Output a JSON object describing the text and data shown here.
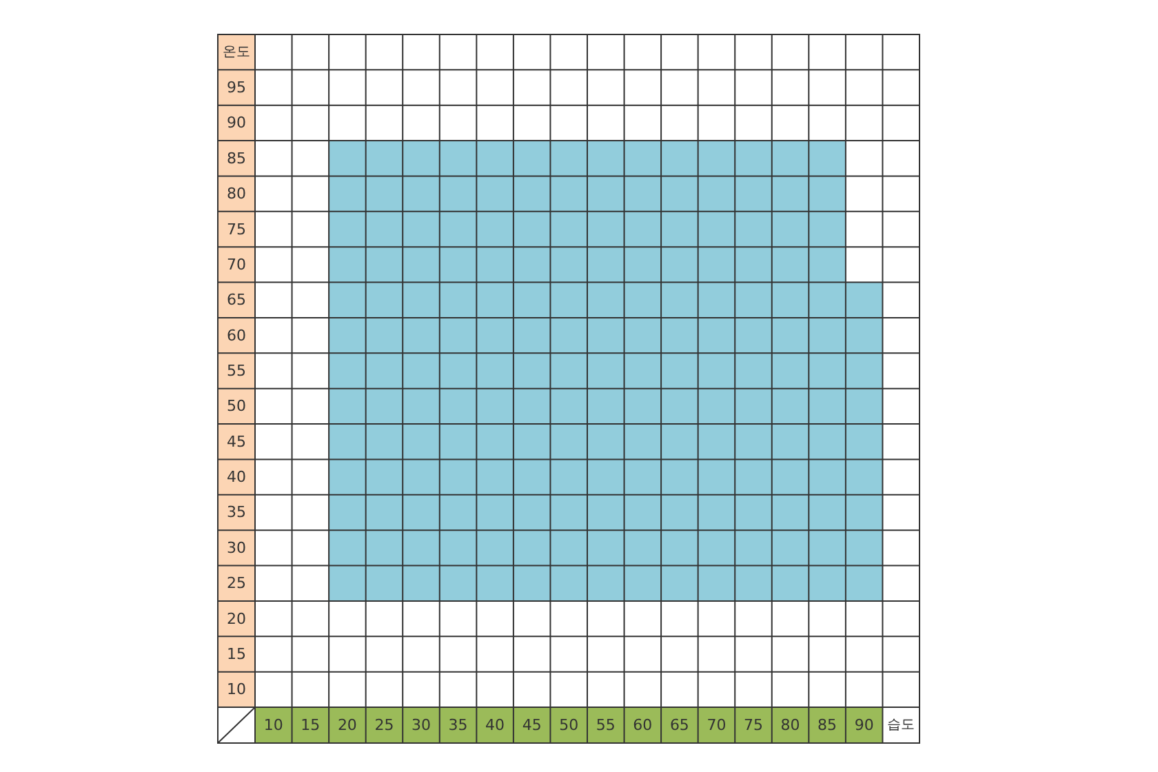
{
  "chart_data": {
    "type": "scatter",
    "xlabel": "습도",
    "ylabel": "온도",
    "color": "#92cddc",
    "marker": "square",
    "grid": true,
    "xlim": [
      7.5,
      97.5
    ],
    "ylim": [
      7.5,
      102.5
    ],
    "xticks": [
      10,
      15,
      20,
      25,
      30,
      35,
      40,
      45,
      50,
      55,
      60,
      65,
      70,
      75,
      80,
      85,
      90
    ],
    "yticks": [
      10,
      15,
      20,
      25,
      30,
      35,
      40,
      45,
      50,
      55,
      60,
      65,
      70,
      75,
      80,
      85,
      90,
      95
    ],
    "x": [
      20,
      25,
      30,
      35,
      40,
      45,
      50,
      55,
      60,
      65,
      70,
      75,
      80,
      85,
      20,
      25,
      30,
      35,
      40,
      45,
      50,
      55,
      60,
      65,
      70,
      75,
      80,
      85,
      20,
      25,
      30,
      35,
      40,
      45,
      50,
      55,
      60,
      65,
      70,
      75,
      80,
      85,
      20,
      25,
      30,
      35,
      40,
      45,
      50,
      55,
      60,
      65,
      70,
      75,
      80,
      85,
      20,
      25,
      30,
      35,
      40,
      45,
      50,
      55,
      60,
      65,
      70,
      75,
      80,
      85,
      90,
      20,
      25,
      30,
      35,
      40,
      45,
      50,
      55,
      60,
      65,
      70,
      75,
      80,
      85,
      90,
      20,
      25,
      30,
      35,
      40,
      45,
      50,
      55,
      60,
      65,
      70,
      75,
      80,
      85,
      90,
      20,
      25,
      30,
      35,
      40,
      45,
      50,
      55,
      60,
      65,
      70,
      75,
      80,
      85,
      90,
      20,
      25,
      30,
      35,
      40,
      45,
      50,
      55,
      60,
      65,
      70,
      75,
      80,
      85,
      90,
      20,
      25,
      30,
      35,
      40,
      45,
      50,
      55,
      60,
      65,
      70,
      75,
      80,
      85,
      90,
      20,
      25,
      30,
      35,
      40,
      45,
      50,
      55,
      60,
      65,
      70,
      75,
      80,
      85,
      90,
      20,
      25,
      30,
      35,
      40,
      45,
      50,
      55,
      60,
      65,
      70,
      75,
      80,
      85,
      90,
      20,
      25,
      30,
      35,
      40,
      45,
      50,
      55,
      60,
      65,
      70,
      75,
      80,
      85,
      90
    ],
    "values": [
      85,
      85,
      85,
      85,
      85,
      85,
      85,
      85,
      85,
      85,
      85,
      85,
      85,
      85,
      80,
      80,
      80,
      80,
      80,
      80,
      80,
      80,
      80,
      80,
      80,
      80,
      80,
      80,
      75,
      75,
      75,
      75,
      75,
      75,
      75,
      75,
      75,
      75,
      75,
      75,
      75,
      75,
      70,
      70,
      70,
      70,
      70,
      70,
      70,
      70,
      70,
      70,
      70,
      70,
      70,
      70,
      65,
      65,
      65,
      65,
      65,
      65,
      65,
      65,
      65,
      65,
      65,
      65,
      65,
      65,
      65,
      60,
      60,
      60,
      60,
      60,
      60,
      60,
      60,
      60,
      60,
      60,
      60,
      60,
      60,
      60,
      55,
      55,
      55,
      55,
      55,
      55,
      55,
      55,
      55,
      55,
      55,
      55,
      55,
      55,
      55,
      50,
      50,
      50,
      50,
      50,
      50,
      50,
      50,
      50,
      50,
      50,
      50,
      50,
      50,
      50,
      45,
      45,
      45,
      45,
      45,
      45,
      45,
      45,
      45,
      45,
      45,
      45,
      45,
      45,
      45,
      40,
      40,
      40,
      40,
      40,
      40,
      40,
      40,
      40,
      40,
      40,
      40,
      40,
      40,
      40,
      35,
      35,
      35,
      35,
      35,
      35,
      35,
      35,
      35,
      35,
      35,
      35,
      35,
      35,
      35,
      30,
      30,
      30,
      30,
      30,
      30,
      30,
      30,
      30,
      30,
      30,
      30,
      30,
      30,
      30,
      25,
      25,
      25,
      25,
      25,
      25,
      25,
      25,
      25,
      25,
      25,
      25,
      25,
      25,
      25
    ]
  }
}
